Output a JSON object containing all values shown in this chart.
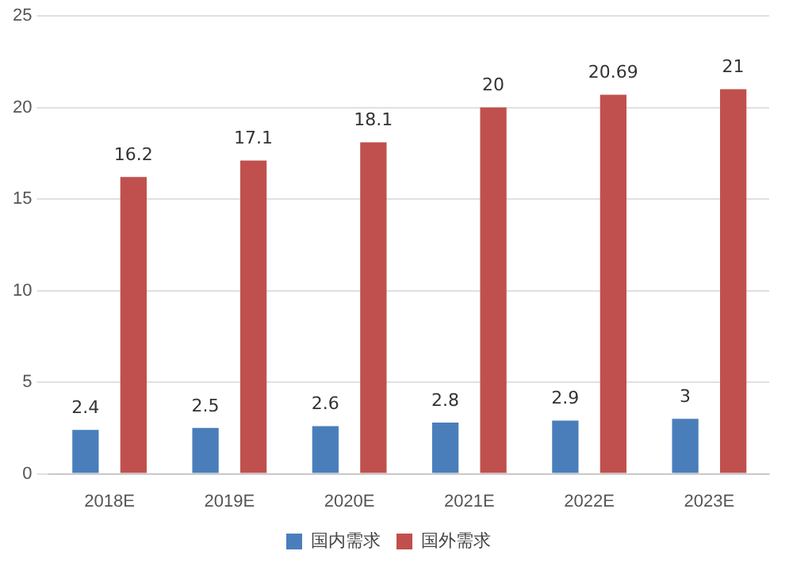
{
  "chart_data": {
    "type": "bar",
    "categories": [
      "2018E",
      "2019E",
      "2020E",
      "2021E",
      "2022E",
      "2023E"
    ],
    "series": [
      {
        "name": "国内需求",
        "color": "#4a7ebb",
        "values": [
          2.4,
          2.5,
          2.6,
          2.8,
          2.9,
          3
        ]
      },
      {
        "name": "国外需求",
        "color": "#c0504d",
        "values": [
          16.2,
          17.1,
          18.1,
          20,
          20.69,
          21
        ]
      }
    ],
    "ylim": [
      0,
      25
    ],
    "yticks": [
      0,
      5,
      10,
      15,
      20,
      25
    ],
    "grid": "y",
    "legend": "bottom",
    "data_labels": true
  }
}
